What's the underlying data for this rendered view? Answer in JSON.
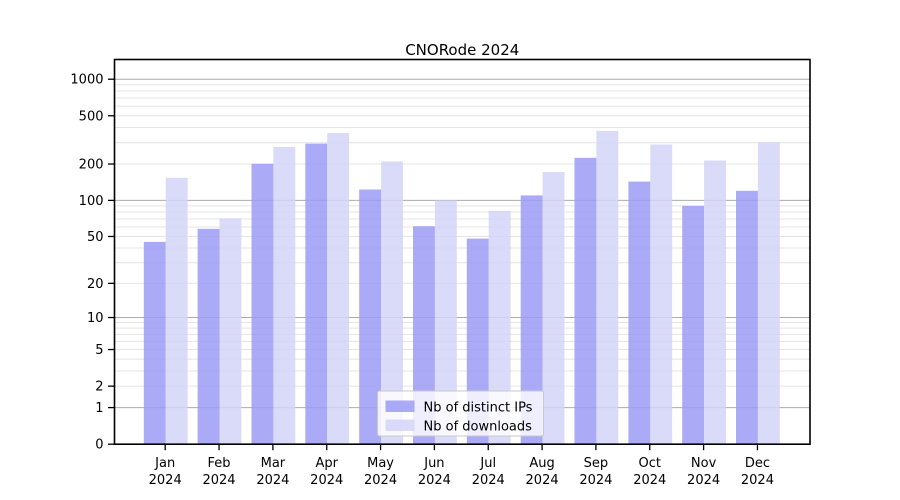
{
  "title": "CNORode 2024",
  "chart_data": {
    "type": "bar",
    "title": "CNORode 2024",
    "scale": "log1p",
    "grid": "horizontal-log-major-minor",
    "legend_position": "inside-bottom-center",
    "year": "2024",
    "categories": [
      "Jan",
      "Feb",
      "Mar",
      "Apr",
      "May",
      "Jun",
      "Jul",
      "Aug",
      "Sep",
      "Oct",
      "Nov",
      "Dec"
    ],
    "y_ticks": [
      0,
      1,
      2,
      5,
      10,
      20,
      50,
      100,
      200,
      500,
      1000
    ],
    "ylim": [
      0,
      1450
    ],
    "series": [
      {
        "name": "Nb of distinct IPs",
        "color": "#9b9bf6",
        "values": [
          45,
          58,
          201,
          295,
          123,
          61,
          48,
          110,
          225,
          143,
          90,
          120
        ]
      },
      {
        "name": "Nb of downloads",
        "color": "#d3d3f8",
        "values": [
          154,
          71,
          277,
          360,
          210,
          100,
          82,
          172,
          375,
          290,
          214,
          303
        ]
      }
    ],
    "colors": {
      "axis": "#000000",
      "major_grid": "#ababab",
      "minor_grid": "#e4e4e4",
      "legend_border": "#c9c9c9",
      "legend_bg": "#ffffff"
    }
  }
}
